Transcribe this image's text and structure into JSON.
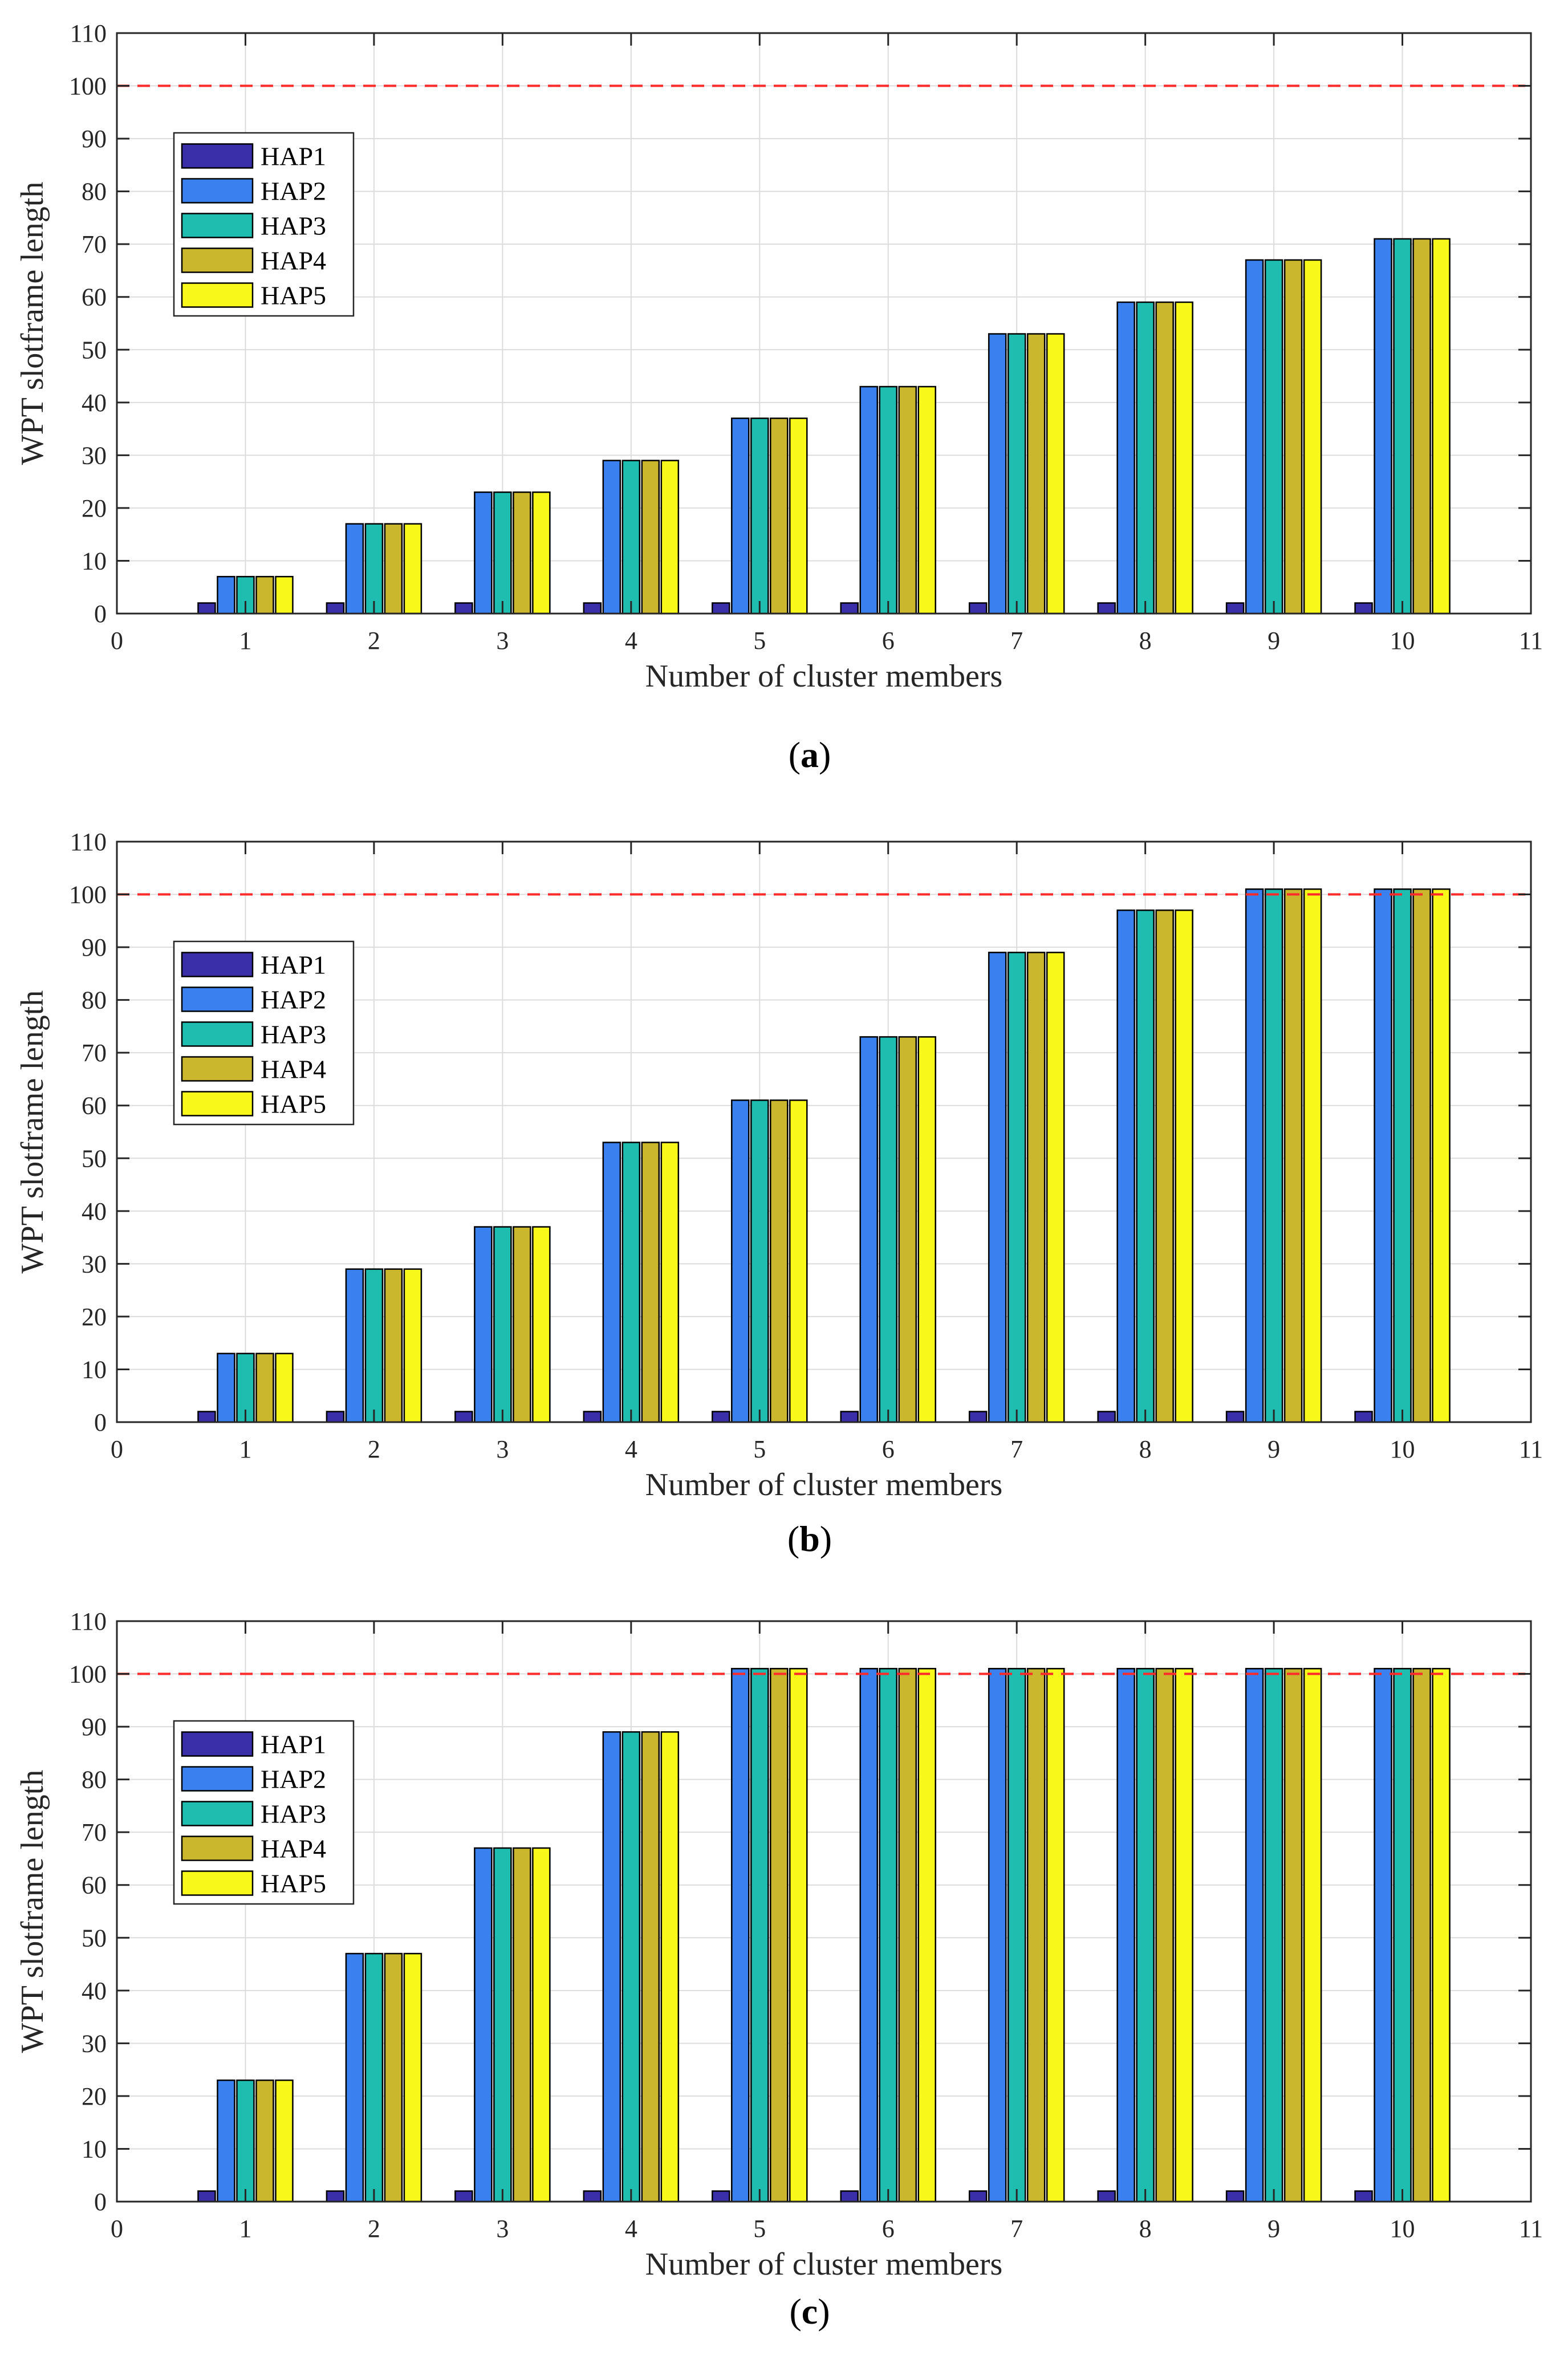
{
  "chart_data": [
    {
      "type": "bar",
      "caption": "a",
      "xlabel": "Number of cluster members",
      "ylabel": "WPT slotframe length",
      "xlim": [
        0,
        11
      ],
      "ylim": [
        0,
        110
      ],
      "xticks": [
        "0",
        "1",
        "2",
        "3",
        "4",
        "5",
        "6",
        "7",
        "8",
        "9",
        "10",
        "11"
      ],
      "yticks": [
        "0",
        "10",
        "20",
        "30",
        "40",
        "50",
        "60",
        "70",
        "80",
        "90",
        "100",
        "110"
      ],
      "grid": true,
      "reference_line": 100,
      "legend_position": "upper-left",
      "categories": [
        1,
        2,
        3,
        4,
        5,
        6,
        7,
        8,
        9,
        10
      ],
      "series": [
        {
          "name": "HAP1",
          "color": "#3a2fa8",
          "values": [
            2,
            2,
            2,
            2,
            2,
            2,
            2,
            2,
            2,
            2
          ]
        },
        {
          "name": "HAP2",
          "color": "#3a80ee",
          "values": [
            7,
            17,
            23,
            29,
            37,
            43,
            53,
            59,
            67,
            71
          ]
        },
        {
          "name": "HAP3",
          "color": "#1fbcb0",
          "values": [
            7,
            17,
            23,
            29,
            37,
            43,
            53,
            59,
            67,
            71
          ]
        },
        {
          "name": "HAP4",
          "color": "#cbb72e",
          "values": [
            7,
            17,
            23,
            29,
            37,
            43,
            53,
            59,
            67,
            71
          ]
        },
        {
          "name": "HAP5",
          "color": "#f8f81a",
          "values": [
            7,
            17,
            23,
            29,
            37,
            43,
            53,
            59,
            67,
            71
          ]
        }
      ]
    },
    {
      "type": "bar",
      "caption": "b",
      "xlabel": "Number of cluster members",
      "ylabel": "WPT slotframe length",
      "xlim": [
        0,
        11
      ],
      "ylim": [
        0,
        110
      ],
      "xticks": [
        "0",
        "1",
        "2",
        "3",
        "4",
        "5",
        "6",
        "7",
        "8",
        "9",
        "10",
        "11"
      ],
      "yticks": [
        "0",
        "10",
        "20",
        "30",
        "40",
        "50",
        "60",
        "70",
        "80",
        "90",
        "100",
        "110"
      ],
      "grid": true,
      "reference_line": 100,
      "legend_position": "upper-left",
      "categories": [
        1,
        2,
        3,
        4,
        5,
        6,
        7,
        8,
        9,
        10
      ],
      "series": [
        {
          "name": "HAP1",
          "color": "#3a2fa8",
          "values": [
            2,
            2,
            2,
            2,
            2,
            2,
            2,
            2,
            2,
            2
          ]
        },
        {
          "name": "HAP2",
          "color": "#3a80ee",
          "values": [
            13,
            29,
            37,
            53,
            61,
            73,
            89,
            97,
            101,
            101
          ]
        },
        {
          "name": "HAP3",
          "color": "#1fbcb0",
          "values": [
            13,
            29,
            37,
            53,
            61,
            73,
            89,
            97,
            101,
            101
          ]
        },
        {
          "name": "HAP4",
          "color": "#cbb72e",
          "values": [
            13,
            29,
            37,
            53,
            61,
            73,
            89,
            97,
            101,
            101
          ]
        },
        {
          "name": "HAP5",
          "color": "#f8f81a",
          "values": [
            13,
            29,
            37,
            53,
            61,
            73,
            89,
            97,
            101,
            101
          ]
        }
      ]
    },
    {
      "type": "bar",
      "caption": "c",
      "xlabel": "Number of cluster members",
      "ylabel": "WPT slotframe length",
      "xlim": [
        0,
        11
      ],
      "ylim": [
        0,
        110
      ],
      "xticks": [
        "0",
        "1",
        "2",
        "3",
        "4",
        "5",
        "6",
        "7",
        "8",
        "9",
        "10",
        "11"
      ],
      "yticks": [
        "0",
        "10",
        "20",
        "30",
        "40",
        "50",
        "60",
        "70",
        "80",
        "90",
        "100",
        "110"
      ],
      "grid": true,
      "reference_line": 100,
      "legend_position": "upper-left",
      "categories": [
        1,
        2,
        3,
        4,
        5,
        6,
        7,
        8,
        9,
        10
      ],
      "series": [
        {
          "name": "HAP1",
          "color": "#3a2fa8",
          "values": [
            2,
            2,
            2,
            2,
            2,
            2,
            2,
            2,
            2,
            2
          ]
        },
        {
          "name": "HAP2",
          "color": "#3a80ee",
          "values": [
            23,
            47,
            67,
            89,
            101,
            101,
            101,
            101,
            101,
            101
          ]
        },
        {
          "name": "HAP3",
          "color": "#1fbcb0",
          "values": [
            23,
            47,
            67,
            89,
            101,
            101,
            101,
            101,
            101,
            101
          ]
        },
        {
          "name": "HAP4",
          "color": "#cbb72e",
          "values": [
            23,
            47,
            67,
            89,
            101,
            101,
            101,
            101,
            101,
            101
          ]
        },
        {
          "name": "HAP5",
          "color": "#f8f81a",
          "values": [
            23,
            47,
            67,
            89,
            101,
            101,
            101,
            101,
            101,
            101
          ]
        }
      ]
    }
  ],
  "style": {
    "axis_color": "#262626",
    "grid_color": "#dcdcdc",
    "reference_line_color": "#ff2a2a",
    "bar_edge_color": "#000000"
  }
}
